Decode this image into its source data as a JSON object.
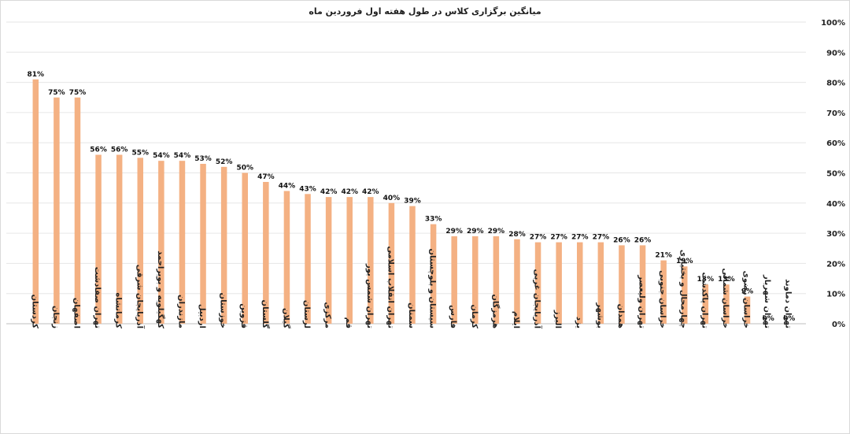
{
  "chart_data": {
    "type": "bar",
    "title": "میانگین برگزاری کلاس در طول هفته اول فروردین ماه",
    "xlabel": "",
    "ylabel": "",
    "ylim": [
      0,
      100
    ],
    "y_ticks": [
      "0%",
      "10%",
      "20%",
      "30%",
      "40%",
      "50%",
      "60%",
      "70%",
      "80%",
      "90%",
      "100%"
    ],
    "y_axis_position": "right",
    "grid": true,
    "bar_color": "#F4B183",
    "categories": [
      "کردستان",
      "زنجان",
      "اصفهان",
      "تهران صفادشت",
      "کرمانشاه",
      "آذربایجان شرقی",
      "کهگیلویه و بویراحمد",
      "مازندران",
      "اردبیل",
      "خوزستان",
      "قزوین",
      "گلستان",
      "گیلان",
      "لرستان",
      "مرکزی",
      "قم",
      "تهران شمس بور",
      "تهران انقلاب اسلامی",
      "سمنان",
      "سیستان و بلوچستان",
      "فارس",
      "کرمان",
      "هرمزگان",
      "ایلام",
      "آذربایجان غربی",
      "البرز",
      "یزد",
      "بوشهر",
      "همدان",
      "تهران ولیعصر",
      "خراسان جنوبی",
      "چهارمحال و بختیاری",
      "تهران پاکدشت",
      "خراسان شمالی",
      "خراسان رضوی",
      "تهران شهریار",
      "تهران دماوند"
    ],
    "values": [
      81,
      75,
      75,
      56,
      56,
      55,
      54,
      54,
      53,
      52,
      50,
      47,
      44,
      43,
      42,
      42,
      42,
      40,
      39,
      33,
      29,
      29,
      29,
      28,
      27,
      27,
      27,
      27,
      26,
      26,
      21,
      19,
      13,
      13,
      9,
      0,
      0
    ],
    "data_labels": [
      "81%",
      "75%",
      "75%",
      "56%",
      "56%",
      "55%",
      "54%",
      "54%",
      "53%",
      "52%",
      "50%",
      "47%",
      "44%",
      "43%",
      "42%",
      "42%",
      "42%",
      "40%",
      "39%",
      "33%",
      "29%",
      "29%",
      "29%",
      "28%",
      "27%",
      "27%",
      "27%",
      "27%",
      "26%",
      "26%",
      "21%",
      "19%",
      "13%",
      "13%",
      "9%",
      "0%",
      "0%"
    ]
  }
}
